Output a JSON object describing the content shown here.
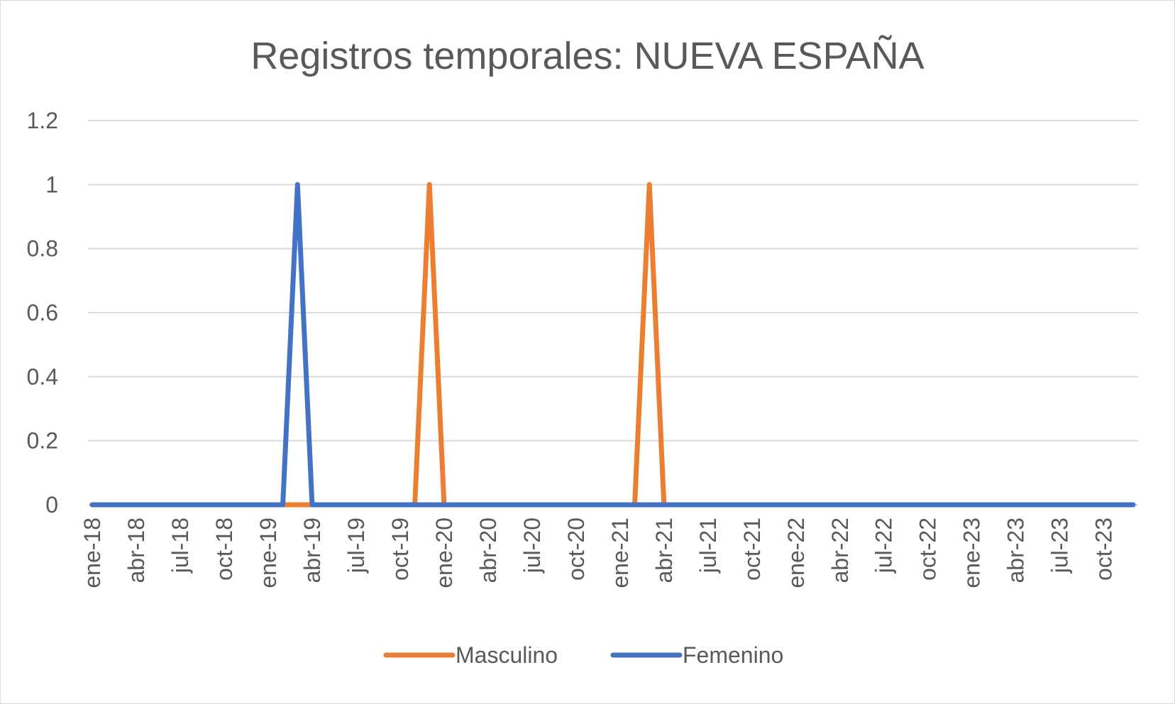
{
  "chart_data": {
    "type": "line",
    "title": "Registros temporales: NUEVA ESPAÑA",
    "xlabel": "",
    "ylabel": "",
    "ylim": [
      0,
      1.2
    ],
    "yticks": [
      "0",
      "0.2",
      "0.4",
      "0.6",
      "0.8",
      "1",
      "1.2"
    ],
    "grid": true,
    "legend_position": "bottom",
    "x": [
      "2018-01",
      "2018-02",
      "2018-03",
      "2018-04",
      "2018-05",
      "2018-06",
      "2018-07",
      "2018-08",
      "2018-09",
      "2018-10",
      "2018-11",
      "2018-12",
      "2019-01",
      "2019-02",
      "2019-03",
      "2019-04",
      "2019-05",
      "2019-06",
      "2019-07",
      "2019-08",
      "2019-09",
      "2019-10",
      "2019-11",
      "2019-12",
      "2020-01",
      "2020-02",
      "2020-03",
      "2020-04",
      "2020-05",
      "2020-06",
      "2020-07",
      "2020-08",
      "2020-09",
      "2020-10",
      "2020-11",
      "2020-12",
      "2021-01",
      "2021-02",
      "2021-03",
      "2021-04",
      "2021-05",
      "2021-06",
      "2021-07",
      "2021-08",
      "2021-09",
      "2021-10",
      "2021-11",
      "2021-12",
      "2022-01",
      "2022-02",
      "2022-03",
      "2022-04",
      "2022-05",
      "2022-06",
      "2022-07",
      "2022-08",
      "2022-09",
      "2022-10",
      "2022-11",
      "2022-12",
      "2023-01",
      "2023-02",
      "2023-03",
      "2023-04",
      "2023-05",
      "2023-06",
      "2023-07",
      "2023-08",
      "2023-09",
      "2023-10",
      "2023-11",
      "2023-12"
    ],
    "tick_labels": [
      "ene-18",
      "abr-18",
      "jul-18",
      "oct-18",
      "ene-19",
      "abr-19",
      "jul-19",
      "oct-19",
      "ene-20",
      "abr-20",
      "jul-20",
      "oct-20",
      "ene-21",
      "abr-21",
      "jul-21",
      "oct-21",
      "ene-22",
      "abr-22",
      "jul-22",
      "oct-22",
      "ene-23",
      "abr-23",
      "jul-23",
      "oct-23"
    ],
    "series": [
      {
        "name": "Masculino",
        "color": "#ED7D31",
        "values": [
          0,
          0,
          0,
          0,
          0,
          0,
          0,
          0,
          0,
          0,
          0,
          0,
          0,
          0,
          0,
          0,
          0,
          0,
          0,
          0,
          0,
          0,
          0,
          1,
          0,
          0,
          0,
          0,
          0,
          0,
          0,
          0,
          0,
          0,
          0,
          0,
          0,
          0,
          1,
          0,
          0,
          0,
          0,
          0,
          0,
          0,
          0,
          0,
          0,
          0,
          0,
          0,
          0,
          0,
          0,
          0,
          0,
          0,
          0,
          0,
          0,
          0,
          0,
          0,
          0,
          0,
          0,
          0,
          0,
          0,
          0,
          0
        ]
      },
      {
        "name": "Femenino",
        "color": "#4472C4",
        "values": [
          0,
          0,
          0,
          0,
          0,
          0,
          0,
          0,
          0,
          0,
          0,
          0,
          0,
          0,
          1,
          0,
          0,
          0,
          0,
          0,
          0,
          0,
          0,
          0,
          0,
          0,
          0,
          0,
          0,
          0,
          0,
          0,
          0,
          0,
          0,
          0,
          0,
          0,
          0,
          0,
          0,
          0,
          0,
          0,
          0,
          0,
          0,
          0,
          0,
          0,
          0,
          0,
          0,
          0,
          0,
          0,
          0,
          0,
          0,
          0,
          0,
          0,
          0,
          0,
          0,
          0,
          0,
          0,
          0,
          0,
          0,
          0
        ]
      }
    ]
  }
}
